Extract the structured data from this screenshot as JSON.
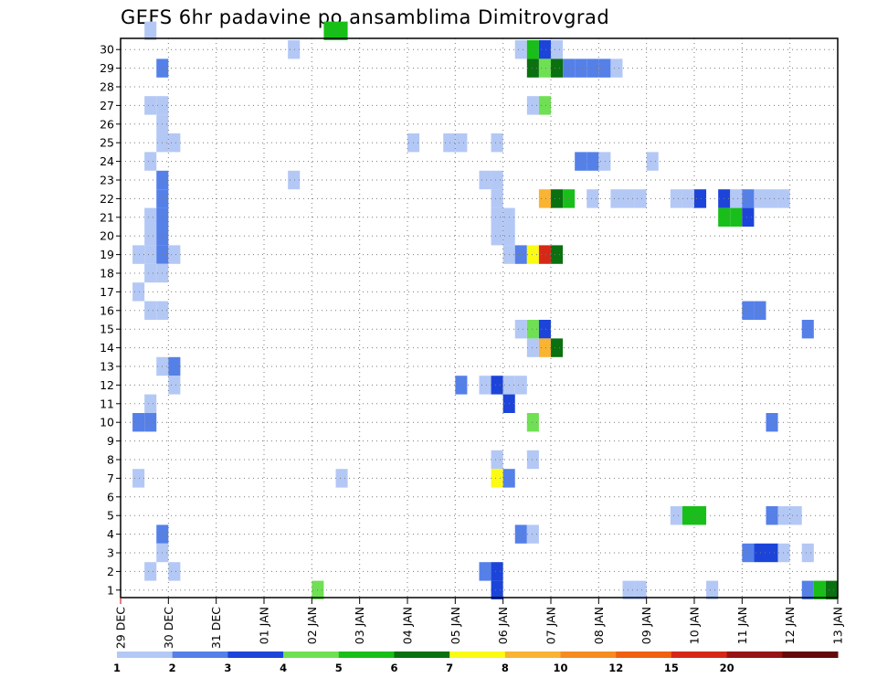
{
  "chart_data": {
    "type": "heatmap",
    "title": "GEFS 6hr padavine po ansamblima Dimitrovgrad",
    "x_start": "29 DEC",
    "x_step_hours": 6,
    "x_ticks": [
      "29 DEC",
      "30 DEC",
      "31 DEC",
      "01 JAN",
      "02 JAN",
      "03 JAN",
      "04 JAN",
      "05 JAN",
      "06 JAN",
      "07 JAN",
      "08 JAN",
      "09 JAN",
      "10 JAN",
      "11 JAN",
      "12 JAN",
      "13 JAN"
    ],
    "y_ticks": [
      "1",
      "2",
      "3",
      "4",
      "5",
      "6",
      "7",
      "8",
      "9",
      "10",
      "11",
      "12",
      "13",
      "14",
      "15",
      "16",
      "17",
      "18",
      "19",
      "20",
      "21",
      "22",
      "23",
      "24",
      "25",
      "26",
      "27",
      "28",
      "29",
      "30"
    ],
    "ylim": [
      0,
      30
    ],
    "grid": true,
    "legend_placement": "bottom",
    "legend": [
      {
        "label": "1",
        "color": "#b4c8f5"
      },
      {
        "label": "2",
        "color": "#5580e8"
      },
      {
        "label": "3",
        "color": "#1c44d9"
      },
      {
        "label": "4",
        "color": "#6fe053"
      },
      {
        "label": "5",
        "color": "#18bf18"
      },
      {
        "label": "6",
        "color": "#0a7010"
      },
      {
        "label": "7",
        "color": "#fafa14"
      },
      {
        "label": "8",
        "color": "#f8b432"
      },
      {
        "label": "10",
        "color": "#f58c22"
      },
      {
        "label": "12",
        "color": "#f06010"
      },
      {
        "label": "15",
        "color": "#d62817"
      },
      {
        "label": "20",
        "color": "#961414"
      },
      {
        "label": "",
        "color": "#640a0a"
      }
    ],
    "cells": [
      [
        2,
        30,
        1
      ],
      [
        17,
        30,
        5
      ],
      [
        18,
        30,
        5
      ],
      [
        14,
        29,
        1
      ],
      [
        33,
        29,
        1
      ],
      [
        34,
        29,
        5
      ],
      [
        35,
        29,
        3
      ],
      [
        36,
        29,
        1
      ],
      [
        3,
        28,
        2
      ],
      [
        34,
        28,
        6
      ],
      [
        35,
        28,
        4
      ],
      [
        36,
        28,
        6
      ],
      [
        37,
        28,
        2
      ],
      [
        38,
        28,
        2
      ],
      [
        39,
        28,
        2
      ],
      [
        40,
        28,
        2
      ],
      [
        41,
        28,
        1
      ],
      [
        34,
        26,
        1
      ],
      [
        35,
        26,
        4
      ],
      [
        2,
        26,
        1
      ],
      [
        3,
        26,
        1
      ],
      [
        3,
        25,
        1
      ],
      [
        3,
        24,
        1
      ],
      [
        4,
        24,
        1
      ],
      [
        24,
        24,
        1
      ],
      [
        27,
        24,
        1
      ],
      [
        28,
        24,
        1
      ],
      [
        31,
        24,
        1
      ],
      [
        2,
        23,
        1
      ],
      [
        38,
        23,
        2
      ],
      [
        39,
        23,
        2
      ],
      [
        40,
        23,
        1
      ],
      [
        44,
        23,
        1
      ],
      [
        3,
        22,
        2
      ],
      [
        14,
        22,
        1
      ],
      [
        30,
        22,
        1
      ],
      [
        31,
        22,
        1
      ],
      [
        3,
        21,
        2
      ],
      [
        31,
        21,
        1
      ],
      [
        35,
        21,
        8
      ],
      [
        36,
        21,
        6
      ],
      [
        37,
        21,
        5
      ],
      [
        39,
        21,
        1
      ],
      [
        41,
        21,
        1
      ],
      [
        42,
        21,
        1
      ],
      [
        43,
        21,
        1
      ],
      [
        46,
        21,
        1
      ],
      [
        47,
        21,
        1
      ],
      [
        48,
        21,
        3
      ],
      [
        50,
        21,
        3
      ],
      [
        51,
        21,
        1
      ],
      [
        52,
        21,
        2
      ],
      [
        53,
        21,
        1
      ],
      [
        54,
        21,
        1
      ],
      [
        55,
        21,
        1
      ],
      [
        2,
        20,
        1
      ],
      [
        3,
        20,
        2
      ],
      [
        31,
        20,
        1
      ],
      [
        32,
        20,
        1
      ],
      [
        50,
        20,
        5
      ],
      [
        51,
        20,
        5
      ],
      [
        52,
        20,
        3
      ],
      [
        2,
        19,
        1
      ],
      [
        3,
        19,
        2
      ],
      [
        31,
        19,
        1
      ],
      [
        32,
        19,
        1
      ],
      [
        1,
        18,
        1
      ],
      [
        2,
        18,
        1
      ],
      [
        3,
        18,
        2
      ],
      [
        4,
        18,
        1
      ],
      [
        32,
        18,
        1
      ],
      [
        33,
        18,
        2
      ],
      [
        34,
        18,
        7
      ],
      [
        35,
        18,
        11
      ],
      [
        36,
        18,
        6
      ],
      [
        2,
        17,
        1
      ],
      [
        3,
        17,
        1
      ],
      [
        1,
        16,
        1
      ],
      [
        2,
        15,
        1
      ],
      [
        3,
        15,
        1
      ],
      [
        52,
        15,
        2
      ],
      [
        53,
        15,
        2
      ],
      [
        33,
        14,
        1
      ],
      [
        34,
        14,
        4
      ],
      [
        35,
        14,
        3
      ],
      [
        57,
        14,
        2
      ],
      [
        34,
        13,
        1
      ],
      [
        35,
        13,
        8
      ],
      [
        36,
        13,
        6
      ],
      [
        3,
        12,
        1
      ],
      [
        4,
        12,
        2
      ],
      [
        4,
        11,
        1
      ],
      [
        28,
        11,
        2
      ],
      [
        30,
        11,
        1
      ],
      [
        31,
        11,
        3
      ],
      [
        32,
        11,
        1
      ],
      [
        33,
        11,
        1
      ],
      [
        2,
        10,
        1
      ],
      [
        32,
        10,
        3
      ],
      [
        1,
        9,
        2
      ],
      [
        2,
        9,
        2
      ],
      [
        34,
        9,
        4
      ],
      [
        54,
        9,
        2
      ],
      [
        31,
        7,
        1
      ],
      [
        34,
        7,
        1
      ],
      [
        1,
        6,
        1
      ],
      [
        18,
        6,
        1
      ],
      [
        31,
        6,
        7
      ],
      [
        32,
        6,
        2
      ],
      [
        46,
        4,
        1
      ],
      [
        47,
        4,
        5
      ],
      [
        48,
        4,
        5
      ],
      [
        54,
        4,
        2
      ],
      [
        55,
        4,
        1
      ],
      [
        56,
        4,
        1
      ],
      [
        33,
        3,
        2
      ],
      [
        34,
        3,
        1
      ],
      [
        3,
        3,
        2
      ],
      [
        3,
        2,
        1
      ],
      [
        52,
        2,
        2
      ],
      [
        53,
        2,
        3
      ],
      [
        54,
        2,
        3
      ],
      [
        55,
        2,
        1
      ],
      [
        57,
        2,
        1
      ],
      [
        2,
        1,
        1
      ],
      [
        4,
        1,
        1
      ],
      [
        30,
        1,
        2
      ],
      [
        31,
        1,
        3
      ],
      [
        16,
        0,
        4
      ],
      [
        31,
        0,
        3
      ],
      [
        42,
        0,
        1
      ],
      [
        43,
        0,
        1
      ],
      [
        49,
        0,
        1
      ],
      [
        57,
        0,
        2
      ],
      [
        58,
        0,
        5
      ],
      [
        59,
        0,
        6
      ]
    ]
  }
}
